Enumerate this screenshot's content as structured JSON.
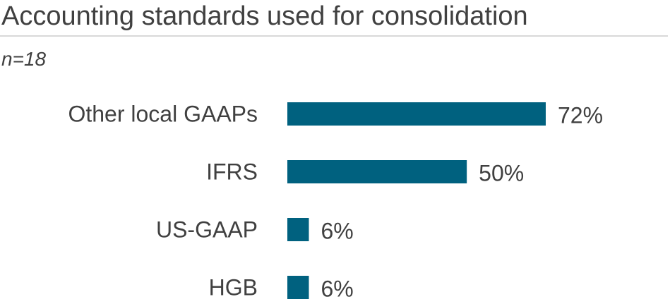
{
  "header": {
    "title": "Accounting standards used for consolidation",
    "subtitle": "n=18"
  },
  "colors": {
    "bar": "#00617f",
    "text": "#404040",
    "rule": "#d9d9d9"
  },
  "chart_data": {
    "type": "bar",
    "orientation": "horizontal",
    "title": "Accounting standards used for consolidation",
    "subtitle": "n=18",
    "categories": [
      "Other local GAAPs",
      "IFRS",
      "US-GAAP",
      "HGB"
    ],
    "values": [
      72,
      50,
      6,
      6
    ],
    "value_labels": [
      "72%",
      "50%",
      "6%",
      "6%"
    ],
    "unit": "%",
    "xlim": [
      0,
      100
    ],
    "grid": false,
    "legend": "none"
  }
}
